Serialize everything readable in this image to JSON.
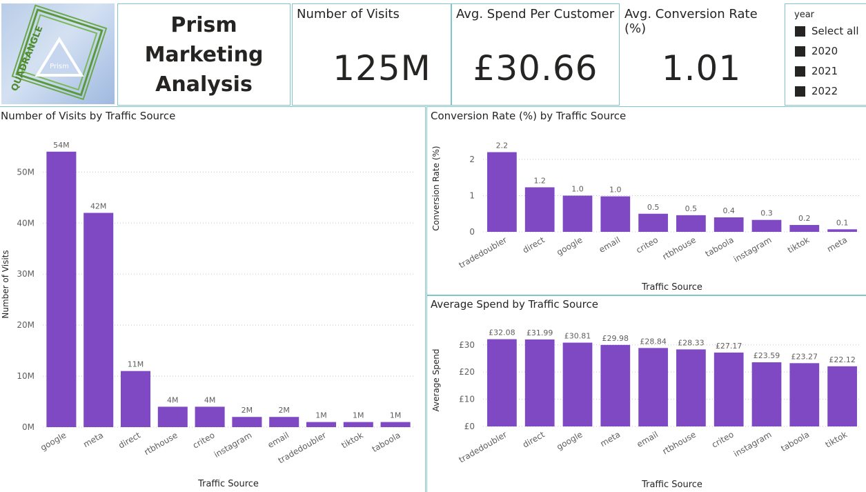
{
  "header": {
    "logo": {
      "word": "QUADRANGLE",
      "inner": "Prism"
    },
    "title_lines": [
      "Prism",
      "Marketing",
      "Analysis"
    ]
  },
  "kpis": [
    {
      "label": "Number of Visits",
      "value": "125M"
    },
    {
      "label": "Avg. Spend Per Customer",
      "value": "£30.66"
    },
    {
      "label": "Avg. Conversion Rate (%)",
      "value": "1.01"
    }
  ],
  "slicer": {
    "title": "year",
    "items": [
      "Select all",
      "2020",
      "2021",
      "2022"
    ]
  },
  "colors": {
    "bar": "#8049c4",
    "border": "#7fc6c9",
    "text": "#252423",
    "grid": "#c8c8c8"
  },
  "chart_data": [
    {
      "type": "bar",
      "title": "Number of Visits by Traffic Source",
      "xlabel": "Traffic Source",
      "ylabel": "Number of Visits",
      "categories": [
        "google",
        "meta",
        "direct",
        "rtbhouse",
        "criteo",
        "instagram",
        "email",
        "tradedoubler",
        "tiktok",
        "taboola"
      ],
      "values": [
        54,
        42,
        11,
        4,
        4,
        2,
        2,
        1,
        1,
        1
      ],
      "data_labels": [
        "54M",
        "42M",
        "11M",
        "4M",
        "4M",
        "2M",
        "2M",
        "1M",
        "1M",
        "1M"
      ],
      "ylim": [
        0,
        56
      ],
      "yticks": [
        0,
        10,
        20,
        30,
        40,
        50
      ],
      "ytick_labels": [
        "0M",
        "10M",
        "20M",
        "30M",
        "40M",
        "50M"
      ],
      "grid": true
    },
    {
      "type": "bar",
      "title": "Conversion Rate (%) by Traffic Source",
      "xlabel": "Traffic Source",
      "ylabel": "Conversion Rate (%)",
      "categories": [
        "tradedoubler",
        "direct",
        "google",
        "email",
        "criteo",
        "rtbhouse",
        "taboola",
        "instagram",
        "tiktok",
        "meta"
      ],
      "values": [
        2.2,
        1.23,
        1.0,
        0.98,
        0.5,
        0.46,
        0.4,
        0.33,
        0.19,
        0.07
      ],
      "data_labels": [
        "2.2",
        "1.2",
        "1.0",
        "1.0",
        "0.5",
        "0.5",
        "0.4",
        "0.3",
        "0.2",
        "0.1"
      ],
      "ylim": [
        0,
        2.4
      ],
      "yticks": [
        0,
        1,
        2
      ],
      "ytick_labels": [
        "0",
        "1",
        "2"
      ],
      "grid": true
    },
    {
      "type": "bar",
      "title": "Average Spend by Traffic Source",
      "xlabel": "Traffic Source",
      "ylabel": "Average Spend",
      "categories": [
        "tradedoubler",
        "direct",
        "google",
        "meta",
        "email",
        "rtbhouse",
        "criteo",
        "instagram",
        "taboola",
        "tiktok"
      ],
      "values": [
        32.08,
        31.99,
        30.81,
        29.98,
        28.84,
        28.33,
        27.17,
        23.59,
        23.27,
        22.12
      ],
      "data_labels": [
        "£32.08",
        "£31.99",
        "£30.81",
        "£29.98",
        "£28.84",
        "£28.33",
        "£27.17",
        "£23.59",
        "£23.27",
        "£22.12"
      ],
      "ylim": [
        0,
        34
      ],
      "yticks": [
        0,
        10,
        20,
        30
      ],
      "ytick_labels": [
        "£0",
        "£10",
        "£20",
        "£30"
      ],
      "grid": true
    }
  ]
}
